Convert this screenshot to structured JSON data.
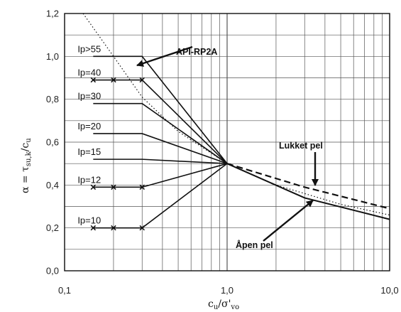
{
  "chart_data": {
    "type": "line",
    "x_scale": "log",
    "xlim": [
      0.1,
      10.0
    ],
    "ylim": [
      0.0,
      1.2
    ],
    "x_ticks": [
      "0,1",
      "1,0",
      "10,0"
    ],
    "y_ticks": [
      "0,0",
      "0,2",
      "0,4",
      "0,6",
      "0,8",
      "1,0",
      "1,2"
    ],
    "grid": true,
    "xlabel": {
      "base": "c",
      "sub": "u",
      "mid": "/σ'",
      "sub2": "vo"
    },
    "ylabel": {
      "pre": "α = τ",
      "sub": "su,k",
      "post": "/c",
      "sub2": "u"
    },
    "ip_series": [
      {
        "name": "Ip>55",
        "plateau": 1.0,
        "marks": []
      },
      {
        "name": "Ip=40",
        "plateau": 0.89,
        "marks": [
          0.15,
          0.2,
          0.3
        ]
      },
      {
        "name": "Ip=30",
        "plateau": 0.78,
        "marks": []
      },
      {
        "name": "Ip=20",
        "plateau": 0.64,
        "marks": []
      },
      {
        "name": "Ip=15",
        "plateau": 0.52,
        "marks": []
      },
      {
        "name": "Ip=12",
        "plateau": 0.39,
        "marks": [
          0.15,
          0.2,
          0.3
        ]
      },
      {
        "name": "Ip=10",
        "plateau": 0.2,
        "marks": [
          0.15,
          0.2,
          0.3
        ]
      }
    ],
    "convergence_point": {
      "x": 1.0,
      "y": 0.5
    },
    "series": [
      {
        "name": "Åpen pel",
        "style": "solid",
        "points": [
          [
            1.0,
            0.5
          ],
          [
            3.0,
            0.34
          ],
          [
            10.0,
            0.24
          ]
        ]
      },
      {
        "name": "Lukket pel",
        "style": "dashed",
        "points": [
          [
            1.0,
            0.5
          ],
          [
            3.0,
            0.39
          ],
          [
            10.0,
            0.29
          ]
        ]
      },
      {
        "name": "API-RP2A",
        "style": "dotted",
        "points": [
          [
            0.13,
            1.2
          ],
          [
            0.2,
            1.0
          ],
          [
            0.3,
            0.81
          ],
          [
            0.5,
            0.65
          ],
          [
            1.0,
            0.5
          ],
          [
            2.0,
            0.4
          ],
          [
            5.0,
            0.31
          ],
          [
            10.0,
            0.26
          ]
        ]
      }
    ],
    "annotations": [
      "API-RP2A",
      "Lukket pel",
      "Åpen pel"
    ]
  }
}
